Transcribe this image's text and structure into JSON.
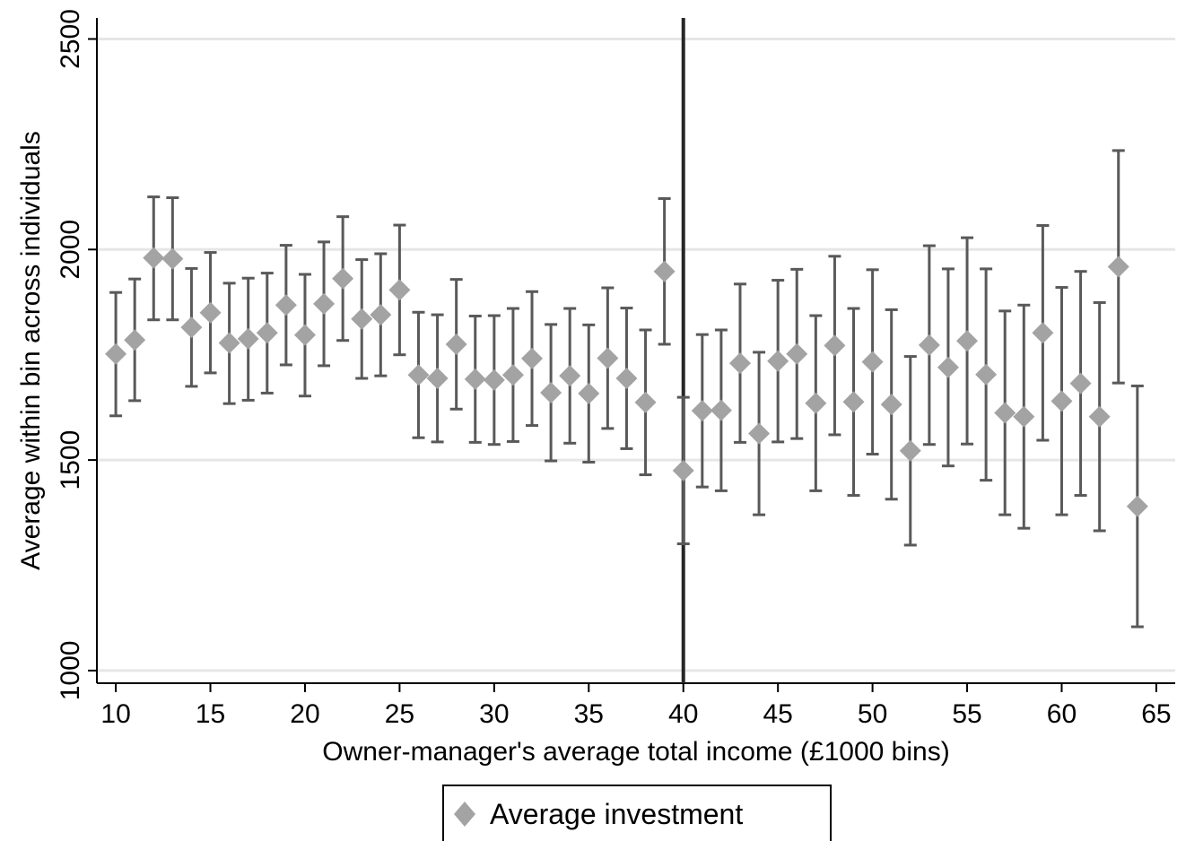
{
  "chart_data": {
    "type": "scatter",
    "title": "",
    "xlabel": "Owner-manager's average total income  (£1000 bins)",
    "ylabel": "Average within bin across individuals",
    "xlim": [
      9,
      66
    ],
    "ylim": [
      970,
      2550
    ],
    "xticks": [
      10,
      15,
      20,
      25,
      30,
      35,
      40,
      45,
      50,
      55,
      60,
      65
    ],
    "yticks": [
      1000,
      1500,
      2000,
      2500
    ],
    "grid": "horizontal",
    "reference_line_x": 40,
    "legend_position": "bottom-center",
    "colors": {
      "marker": "#a3a3a3",
      "error_bar": "#595959",
      "grid": "#e6e6e6",
      "reference_line": "#262626"
    },
    "series": [
      {
        "name": "Average investment",
        "marker": "diamond",
        "x": [
          10,
          11,
          12,
          13,
          14,
          15,
          16,
          17,
          18,
          19,
          20,
          21,
          22,
          23,
          24,
          25,
          26,
          27,
          28,
          29,
          30,
          31,
          32,
          33,
          34,
          35,
          36,
          37,
          38,
          39,
          40,
          41,
          42,
          43,
          44,
          45,
          46,
          47,
          48,
          49,
          50,
          51,
          52,
          53,
          54,
          55,
          56,
          57,
          58,
          59,
          60,
          61,
          62,
          63,
          64
        ],
        "y": [
          1752,
          1785,
          1980,
          1978,
          1815,
          1850,
          1778,
          1788,
          1802,
          1868,
          1797,
          1871,
          1931,
          1835,
          1845,
          1904,
          1702,
          1694,
          1775,
          1692,
          1690,
          1702,
          1741,
          1660,
          1700,
          1658,
          1742,
          1694,
          1637,
          1948,
          1475,
          1617,
          1618,
          1730,
          1563,
          1735,
          1752,
          1635,
          1772,
          1638,
          1733,
          1632,
          1522,
          1773,
          1720,
          1783,
          1703,
          1612,
          1603,
          1802,
          1640,
          1682,
          1603,
          1959,
          1390
        ],
        "ci_low": [
          1605,
          1641,
          1833,
          1833,
          1675,
          1707,
          1634,
          1642,
          1659,
          1726,
          1652,
          1724,
          1784,
          1694,
          1700,
          1750,
          1553,
          1543,
          1621,
          1542,
          1537,
          1544,
          1582,
          1498,
          1540,
          1495,
          1575,
          1527,
          1465,
          1775,
          1301,
          1436,
          1427,
          1542,
          1370,
          1543,
          1551,
          1427,
          1560,
          1416,
          1514,
          1407,
          1298,
          1537,
          1486,
          1538,
          1452,
          1370,
          1338,
          1547,
          1370,
          1416,
          1332,
          1683,
          1104
        ],
        "ci_high": [
          1898,
          1930,
          2125,
          2123,
          1955,
          1993,
          1920,
          1932,
          1944,
          2010,
          1941,
          2018,
          2078,
          1976,
          1990,
          2058,
          1851,
          1845,
          1929,
          1842,
          1843,
          1860,
          1900,
          1822,
          1860,
          1821,
          1909,
          1861,
          1809,
          2121,
          1649,
          1798,
          1809,
          1918,
          1756,
          1927,
          1953,
          1843,
          1984,
          1860,
          1952,
          1857,
          1746,
          2009,
          1954,
          2028,
          1954,
          1854,
          1868,
          2057,
          1910,
          1948,
          1874,
          2235,
          1676
        ]
      }
    ]
  }
}
